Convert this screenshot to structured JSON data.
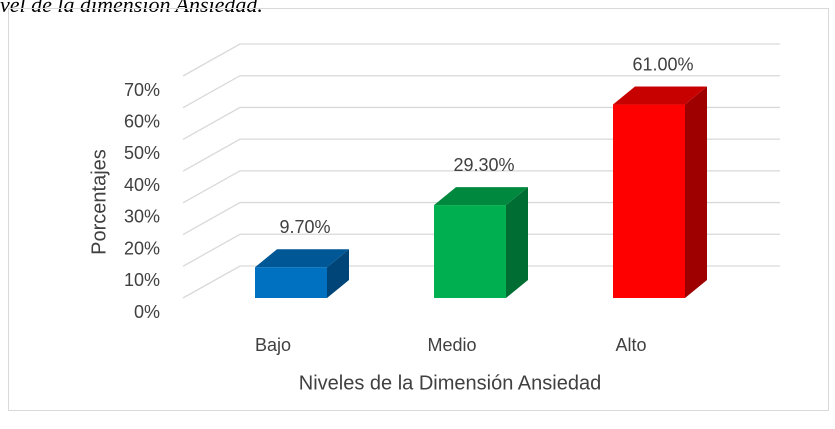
{
  "caption": "vel de la dimensión Ansiedad.",
  "chart_data": {
    "type": "bar3d",
    "y_label": "Porcentajes",
    "x_label": "Niveles de la Dimensión Ansiedad",
    "categories": [
      "Bajo",
      "Medio",
      "Alto"
    ],
    "values": [
      9.7,
      29.3,
      61.0
    ],
    "value_labels": [
      "9.70%",
      "29.30%",
      "61.00%"
    ],
    "colors": [
      "#0070c0",
      "#00b050",
      "#ff0000"
    ],
    "ylim": [
      0,
      70
    ],
    "yticks": [
      {
        "value": 0,
        "label": "0%"
      },
      {
        "value": 10,
        "label": "10%"
      },
      {
        "value": 20,
        "label": "20%"
      },
      {
        "value": 30,
        "label": "30%"
      },
      {
        "value": 40,
        "label": "40%"
      },
      {
        "value": 50,
        "label": "50%"
      },
      {
        "value": 60,
        "label": "60%"
      },
      {
        "value": 70,
        "label": "70%"
      }
    ],
    "grid": true
  }
}
